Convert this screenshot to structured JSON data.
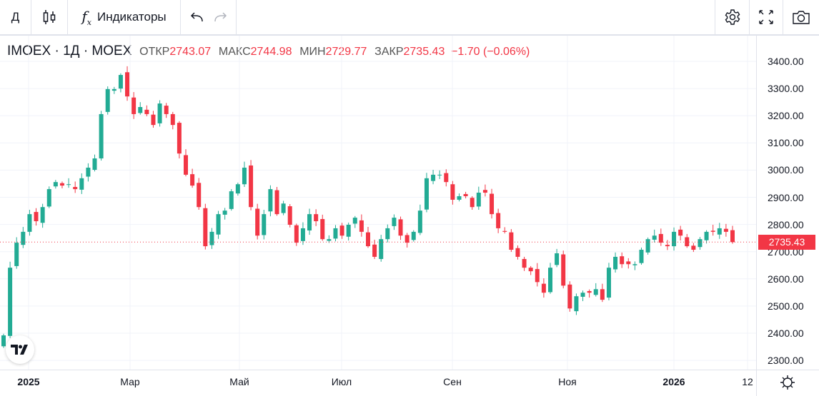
{
  "toolbar": {
    "interval": "Д",
    "chart_type_icon": "candles-icon",
    "indicators_label": "Индикаторы",
    "undo_icon": "undo-icon",
    "redo_icon": "redo-icon",
    "settings_icon": "gear-icon",
    "fullscreen_icon": "fullscreen-icon",
    "snapshot_icon": "camera-icon"
  },
  "legend": {
    "symbol": "IMOEX · 1Д · MOEX",
    "open_label": "ОТКР",
    "open": "2743.07",
    "high_label": "МАКС",
    "high": "2744.98",
    "low_label": "МИН",
    "low": "2729.77",
    "close_label": "ЗАКР",
    "close": "2735.43",
    "change": "−1.70 (−0.06%)"
  },
  "colors": {
    "up": "#22ab94",
    "down": "#f23645",
    "grid": "#f0f3fa",
    "axis": "#e0e3eb"
  },
  "chart_data": {
    "type": "candlestick",
    "title": "",
    "ylim": [
      2260,
      3460
    ],
    "y_ticks": [
      "3400.00",
      "3300.00",
      "3200.00",
      "3100.00",
      "3000.00",
      "2900.00",
      "2800.00",
      "2700.00",
      "2600.00",
      "2500.00",
      "2400.00",
      "2300.00"
    ],
    "x_ticks": [
      "2025",
      "Мар",
      "Май",
      "Июл",
      "Сен",
      "Ноя",
      "2026",
      "12"
    ],
    "last_price": "2735.43",
    "grid": true,
    "closes": [
      2392,
      2641,
      2733,
      2773,
      2838,
      2812,
      2864,
      2930,
      2956,
      2943,
      2948,
      2930,
      2970,
      3009,
      3043,
      3206,
      3298,
      3298,
      3350,
      3271,
      3206,
      3232,
      3206,
      3166,
      3245,
      3206,
      3166,
      3061,
      2983,
      2943,
      2864,
      2720,
      2773,
      2838,
      2851,
      2922,
      2948,
      3009,
      2864,
      2759,
      2838,
      2930,
      2838,
      2877,
      2799,
      2733,
      2786,
      2838,
      2812,
      2746,
      2746,
      2786,
      2759,
      2799,
      2825,
      2773,
      2720,
      2681,
      2746,
      2786,
      2825,
      2759,
      2733,
      2773,
      2851,
      2970,
      2983,
      2983,
      2956,
      2891,
      2904,
      2904,
      2864,
      2917,
      2917,
      2838,
      2786,
      2773,
      2707,
      2681,
      2641,
      2628,
      2588,
      2549,
      2641,
      2694,
      2575,
      2491,
      2536,
      2549,
      2549,
      2562,
      2523,
      2641,
      2681,
      2654,
      2654,
      2654,
      2707,
      2746,
      2759,
      2733,
      2720,
      2773,
      2759,
      2720,
      2707,
      2746,
      2773,
      2773,
      2786,
      2773,
      2735
    ]
  },
  "bottom": {
    "settings_icon": "gear-icon"
  }
}
